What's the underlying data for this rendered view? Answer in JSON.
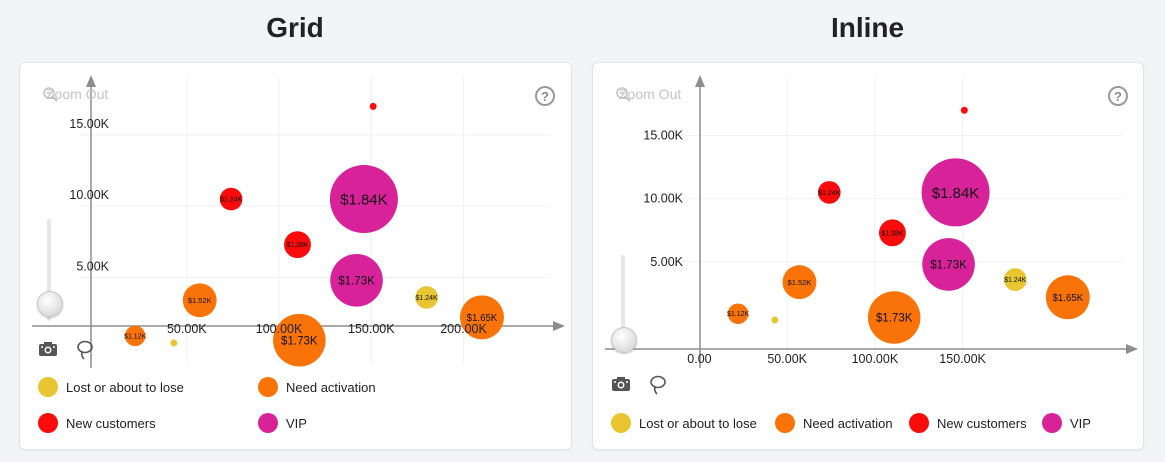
{
  "colors": {
    "lost": "#e8c531",
    "activation": "#fa7308",
    "new": "#fb0b0b",
    "vip": "#d7229a",
    "axis": "#8d8d8d",
    "grid": "#f1f1f1"
  },
  "icons": {
    "zoom": "zoom-out-icon",
    "help": "help-icon",
    "camera": "camera-icon",
    "lasso": "lasso-icon"
  },
  "panels": [
    {
      "id": "grid",
      "title": "Grid",
      "zoom_label": "Zoom Out",
      "help_glyph": "?",
      "legend": [
        {
          "key": "lost",
          "label": "Lost or about to lose"
        },
        {
          "key": "activation",
          "label": "Need activation"
        },
        {
          "key": "new",
          "label": "New customers"
        },
        {
          "key": "vip",
          "label": "VIP"
        }
      ]
    },
    {
      "id": "inline",
      "title": "Inline",
      "zoom_label": "Zoom Out",
      "help_glyph": "?",
      "legend": [
        {
          "key": "lost",
          "label": "Lost or about to lose"
        },
        {
          "key": "activation",
          "label": "Need activation"
        },
        {
          "key": "new",
          "label": "New customers"
        },
        {
          "key": "vip",
          "label": "VIP"
        }
      ]
    }
  ],
  "chart_data": [
    {
      "type": "scatter",
      "subtype": "bubble",
      "title": "Grid",
      "xlabel": "",
      "ylabel": "",
      "x_ticks": [
        {
          "v": 50000,
          "label": "50.00K"
        },
        {
          "v": 100000,
          "label": "100.00K"
        },
        {
          "v": 150000,
          "label": "150.00K"
        },
        {
          "v": 200000,
          "label": "200.00K"
        }
      ],
      "y_ticks": [
        {
          "v": 5000,
          "label": "5.00K"
        },
        {
          "v": 10000,
          "label": "10.00K"
        },
        {
          "v": 15000,
          "label": "15.00K"
        }
      ],
      "xlim": [
        -35000,
        255000
      ],
      "ylim": [
        -1000,
        18500
      ],
      "legend_position": "bottom",
      "series": [
        {
          "name": "Lost or about to lose",
          "key": "lost",
          "points": [
            {
              "x": 43000,
              "y": 400,
              "value": 0,
              "label": ""
            },
            {
              "x": 180000,
              "y": 3600,
              "value": 1240,
              "label": "$1.24K"
            }
          ]
        },
        {
          "name": "Need activation",
          "key": "activation",
          "points": [
            {
              "x": 22000,
              "y": 900,
              "value": 1120,
              "label": "$1.12K"
            },
            {
              "x": 57000,
              "y": 3400,
              "value": 1520,
              "label": "$1.52K"
            },
            {
              "x": 111000,
              "y": 600,
              "value": 1730,
              "label": "$1.73K"
            },
            {
              "x": 210000,
              "y": 2200,
              "value": 1650,
              "label": "$1.65K"
            }
          ]
        },
        {
          "name": "New customers",
          "key": "new",
          "points": [
            {
              "x": 74000,
              "y": 10500,
              "value": 1240,
              "label": "$1.24K"
            },
            {
              "x": 110000,
              "y": 7300,
              "value": 1380,
              "label": "$1.38K"
            },
            {
              "x": 151000,
              "y": 17000,
              "value": 0,
              "label": ""
            }
          ]
        },
        {
          "name": "VIP",
          "key": "vip",
          "points": [
            {
              "x": 146000,
              "y": 10500,
              "value": 1840,
              "label": "$1.84K"
            },
            {
              "x": 142000,
              "y": 4800,
              "value": 1730,
              "label": "$1.73K"
            }
          ]
        }
      ]
    },
    {
      "type": "scatter",
      "subtype": "bubble",
      "title": "Inline",
      "xlabel": "",
      "ylabel": "",
      "x_ticks": [
        {
          "v": 0,
          "label": "0.00"
        },
        {
          "v": 50000,
          "label": "50.00K"
        },
        {
          "v": 100000,
          "label": "100.00K"
        },
        {
          "v": 150000,
          "label": "150.00K"
        }
      ],
      "y_ticks": [
        {
          "v": 5000,
          "label": "5.00K"
        },
        {
          "v": 10000,
          "label": "10.00K"
        },
        {
          "v": 15000,
          "label": "15.00K"
        }
      ],
      "xlim": [
        -55000,
        250000
      ],
      "ylim": [
        -3000,
        19000
      ],
      "legend_position": "bottom",
      "series": [
        {
          "name": "Lost or about to lose",
          "key": "lost",
          "points": [
            {
              "x": 43000,
              "y": 400,
              "value": 0,
              "label": ""
            },
            {
              "x": 180000,
              "y": 3600,
              "value": 1240,
              "label": "$1.24K"
            }
          ]
        },
        {
          "name": "Need activation",
          "key": "activation",
          "points": [
            {
              "x": 22000,
              "y": 900,
              "value": 1120,
              "label": "$1.12K"
            },
            {
              "x": 57000,
              "y": 3400,
              "value": 1520,
              "label": "$1.52K"
            },
            {
              "x": 111000,
              "y": 600,
              "value": 1730,
              "label": "$1.73K"
            },
            {
              "x": 210000,
              "y": 2200,
              "value": 1650,
              "label": "$1.65K"
            }
          ]
        },
        {
          "name": "New customers",
          "key": "new",
          "points": [
            {
              "x": 74000,
              "y": 10500,
              "value": 1240,
              "label": "$1.24K"
            },
            {
              "x": 110000,
              "y": 7300,
              "value": 1380,
              "label": "$1.38K"
            },
            {
              "x": 151000,
              "y": 17000,
              "value": 0,
              "label": ""
            }
          ]
        },
        {
          "name": "VIP",
          "key": "vip",
          "points": [
            {
              "x": 146000,
              "y": 10500,
              "value": 1840,
              "label": "$1.84K"
            },
            {
              "x": 142000,
              "y": 4800,
              "value": 1730,
              "label": "$1.73K"
            }
          ]
        }
      ]
    }
  ]
}
